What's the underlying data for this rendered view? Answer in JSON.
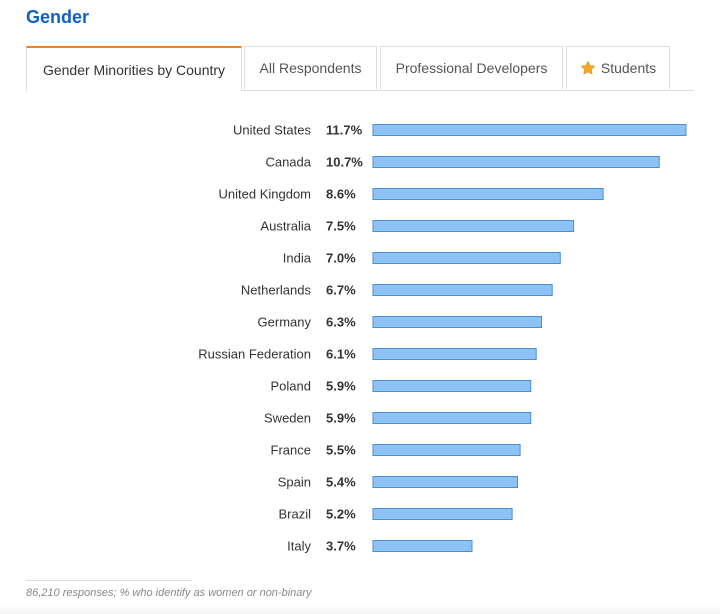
{
  "section": {
    "title": "Gender"
  },
  "tabs": [
    {
      "label": "Gender Minorities by Country",
      "active": true
    },
    {
      "label": "All Respondents",
      "active": false
    },
    {
      "label": "Professional Developers",
      "active": false
    },
    {
      "label": "Students",
      "active": false,
      "icon": "star-icon"
    }
  ],
  "colors": {
    "bar_fill": "#8ec2f4",
    "bar_stroke": "#4a8fd6",
    "tab_accent": "#f48024",
    "title": "#0c63c5",
    "star": "#f5a623"
  },
  "chart_data": {
    "type": "bar",
    "orientation": "horizontal",
    "categories": [
      "United States",
      "Canada",
      "United Kingdom",
      "Australia",
      "India",
      "Netherlands",
      "Germany",
      "Russian Federation",
      "Poland",
      "Sweden",
      "France",
      "Spain",
      "Brazil",
      "Italy"
    ],
    "values": [
      11.7,
      10.7,
      8.6,
      7.5,
      7.0,
      6.7,
      6.3,
      6.1,
      5.9,
      5.9,
      5.5,
      5.4,
      5.2,
      3.7
    ],
    "value_labels": [
      "11.7%",
      "10.7%",
      "8.6%",
      "7.5%",
      "7.0%",
      "6.7%",
      "6.3%",
      "6.1%",
      "5.9%",
      "5.9%",
      "5.5%",
      "5.4%",
      "5.2%",
      "3.7%"
    ],
    "unit": "%",
    "xlim": [
      0,
      11.7
    ],
    "grid": false,
    "legend": "none"
  },
  "footnote": "86,210 responses; % who identify as women or non-binary"
}
